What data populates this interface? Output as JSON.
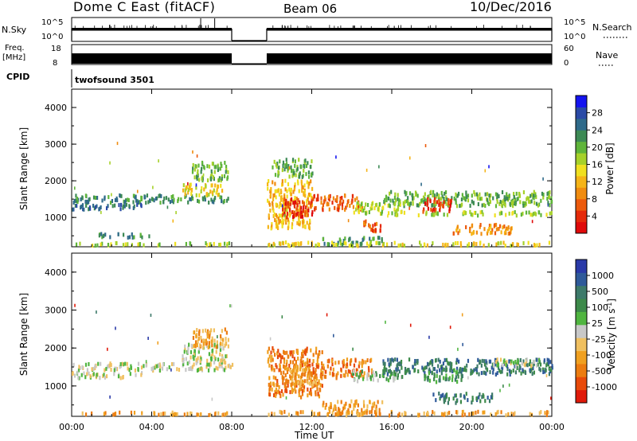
{
  "header": {
    "title": "Dome C East (fitACF)",
    "beam": "Beam 06",
    "date": "10/Dec/2016"
  },
  "top_panels": {
    "nsky": {
      "label": "N.Sky",
      "tick_high": "10^5",
      "tick_low": "10^0"
    },
    "nsearch": {
      "label": "N.Search",
      "tick_high": "10^5",
      "tick_low": "10^0"
    },
    "freq": {
      "label_line1": "Freq.",
      "label_line2": "[MHz]",
      "tick_high": "18",
      "tick_low": "8"
    },
    "nave": {
      "label": "Nave",
      "tick_high": "60",
      "tick_low": "0"
    },
    "cpid": {
      "label": "CPID",
      "value": "twofsound 3501"
    }
  },
  "chart_data": [
    {
      "type": "heatmap",
      "name": "power",
      "xlabel": "Time UT",
      "ylabel": "Slant Range [km]",
      "xlim": [
        0,
        24
      ],
      "ylim": [
        200,
        4500
      ],
      "x_ticks": [
        "00:00",
        "04:00",
        "08:00",
        "12:00",
        "16:00",
        "20:00",
        "00:00"
      ],
      "y_ticks": [
        "1000",
        "2000",
        "3000",
        "4000"
      ],
      "colorbar": {
        "label": "Power [dB]",
        "ticks": [
          "4",
          "8",
          "12",
          "16",
          "20",
          "24",
          "28"
        ],
        "colors": [
          "#1414f0",
          "#2a4aa6",
          "#2f6a8a",
          "#3d8a55",
          "#5fb53a",
          "#a6d12a",
          "#f0e020",
          "#f5b418",
          "#f08c10",
          "#ec5a0c",
          "#e52a0a",
          "#e00a0a"
        ]
      },
      "data_gap_hours": [
        8.0,
        9.75
      ],
      "echo_regions": [
        {
          "x": [
            0.0,
            8.0
          ],
          "y": [
            1400,
            1600
          ],
          "level": 3
        },
        {
          "x": [
            0.0,
            3.5
          ],
          "y": [
            1200,
            1350
          ],
          "level": 2
        },
        {
          "x": [
            1.0,
            4.0
          ],
          "y": [
            450,
            550
          ],
          "level": 3
        },
        {
          "x": [
            0.0,
            8.0
          ],
          "y": [
            230,
            300
          ],
          "level": 5
        },
        {
          "x": [
            5.5,
            7.5
          ],
          "y": [
            1600,
            1900
          ],
          "level": 6
        },
        {
          "x": [
            6.0,
            7.8
          ],
          "y": [
            2000,
            2500
          ],
          "level": 4
        },
        {
          "x": [
            9.75,
            12.0
          ],
          "y": [
            700,
            2000
          ],
          "level": 7
        },
        {
          "x": [
            10.5,
            12.0
          ],
          "y": [
            1000,
            1500
          ],
          "level": 10
        },
        {
          "x": [
            12.0,
            14.5
          ],
          "y": [
            1200,
            1600
          ],
          "level": 9
        },
        {
          "x": [
            14.0,
            16.5
          ],
          "y": [
            1100,
            1400
          ],
          "level": 5
        },
        {
          "x": [
            14.5,
            15.5
          ],
          "y": [
            600,
            900
          ],
          "level": 9
        },
        {
          "x": [
            12.5,
            15.5
          ],
          "y": [
            250,
            450
          ],
          "level": 3
        },
        {
          "x": [
            15.5,
            24.0
          ],
          "y": [
            1300,
            1700
          ],
          "level": 4
        },
        {
          "x": [
            17.5,
            19.0
          ],
          "y": [
            1150,
            1500
          ],
          "level": 10
        },
        {
          "x": [
            19.0,
            22.0
          ],
          "y": [
            550,
            800
          ],
          "level": 8
        },
        {
          "x": [
            16.0,
            24.0
          ],
          "y": [
            1050,
            1150
          ],
          "level": 5
        },
        {
          "x": [
            9.75,
            24.0
          ],
          "y": [
            220,
            320
          ],
          "level": 6
        },
        {
          "x": [
            10.0,
            12.0
          ],
          "y": [
            2100,
            2600
          ],
          "level": 4
        }
      ]
    },
    {
      "type": "heatmap",
      "name": "velocity",
      "xlabel": "Time UT",
      "ylabel": "Slant Range [km]",
      "xlim": [
        0,
        24
      ],
      "ylim": [
        200,
        4500
      ],
      "x_ticks": [
        "00:00",
        "04:00",
        "08:00",
        "12:00",
        "16:00",
        "20:00",
        "00:00"
      ],
      "y_ticks": [
        "1000",
        "2000",
        "3000",
        "4000"
      ],
      "colorbar": {
        "label": "Velocity [m s^-1]",
        "ticks": [
          "1000",
          "500",
          "100",
          "25",
          "-25",
          "-100",
          "-500",
          "-1000"
        ],
        "colors": [
          "#2a3aa8",
          "#2f5a9a",
          "#3d7a6a",
          "#3d8a4a",
          "#50b540",
          "#c8c8c8",
          "#f0c060",
          "#f0a020",
          "#ec7c10",
          "#e84a0a",
          "#e01a0a"
        ]
      },
      "data_gap_hours": [
        8.0,
        9.75
      ],
      "echo_regions": [
        {
          "x": [
            0.0,
            8.0
          ],
          "y": [
            1400,
            1600
          ],
          "level": 5
        },
        {
          "x": [
            0.0,
            3.5
          ],
          "y": [
            1200,
            1350
          ],
          "level": 5
        },
        {
          "x": [
            5.5,
            7.8
          ],
          "y": [
            1600,
            2100
          ],
          "level": 5
        },
        {
          "x": [
            6.0,
            7.8
          ],
          "y": [
            2000,
            2500
          ],
          "level": 7
        },
        {
          "x": [
            9.75,
            12.5
          ],
          "y": [
            700,
            2000
          ],
          "level": 8
        },
        {
          "x": [
            10.5,
            12.5
          ],
          "y": [
            1000,
            1500
          ],
          "level": 7
        },
        {
          "x": [
            12.5,
            15.0
          ],
          "y": [
            1200,
            1700
          ],
          "level": 8
        },
        {
          "x": [
            14.0,
            16.5
          ],
          "y": [
            1100,
            1400
          ],
          "level": 4
        },
        {
          "x": [
            12.5,
            15.5
          ],
          "y": [
            250,
            600
          ],
          "level": 7
        },
        {
          "x": [
            15.5,
            24.0
          ],
          "y": [
            1300,
            1700
          ],
          "level": 2
        },
        {
          "x": [
            17.5,
            19.5
          ],
          "y": [
            1100,
            1450
          ],
          "level": 3
        },
        {
          "x": [
            18.0,
            21.0
          ],
          "y": [
            550,
            800
          ],
          "level": 2
        },
        {
          "x": [
            21.0,
            23.5
          ],
          "y": [
            1500,
            1700
          ],
          "level": 5
        },
        {
          "x": [
            0.0,
            8.0
          ],
          "y": [
            230,
            300
          ],
          "level": 7
        },
        {
          "x": [
            9.75,
            24.0
          ],
          "y": [
            220,
            320
          ],
          "level": 7
        }
      ]
    }
  ]
}
